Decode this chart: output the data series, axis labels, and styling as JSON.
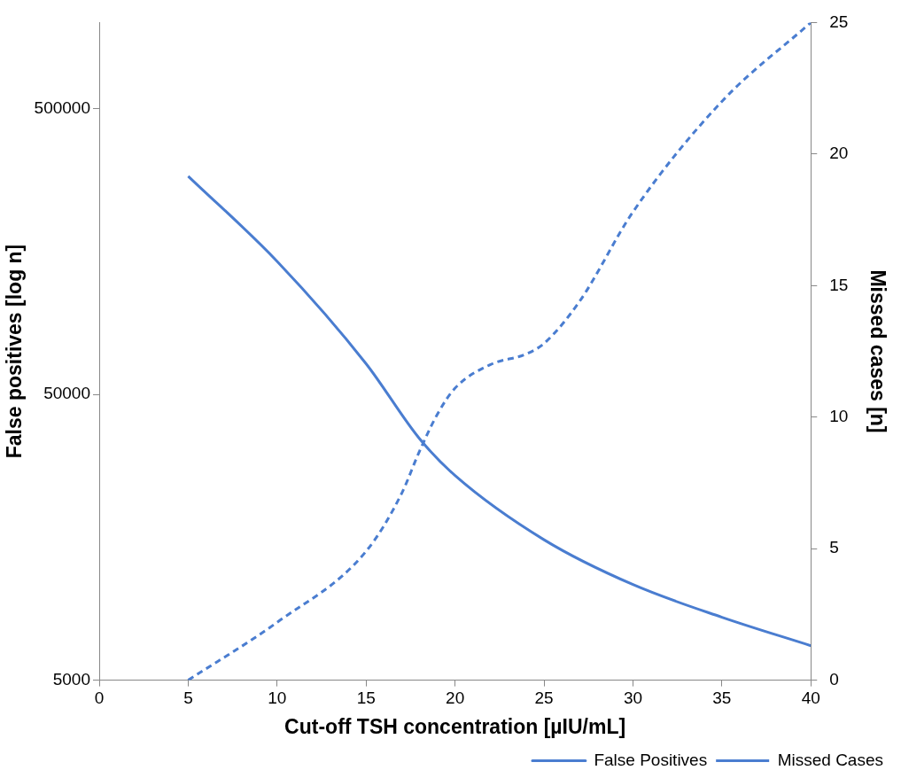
{
  "chart_data": {
    "type": "line",
    "xlabel": "Cut-off TSH concentration [µIU/mL]",
    "ylabel": "False positives [log n]",
    "y2label": "Missed cases [n]",
    "xlim": [
      0,
      40
    ],
    "xticks": [
      0,
      5,
      10,
      15,
      20,
      25,
      30,
      35,
      40
    ],
    "ylim": [
      5000,
      1000000
    ],
    "yticks": [
      5000,
      50000,
      500000
    ],
    "log": "y",
    "y2lim": [
      0,
      25
    ],
    "y2ticks": [
      0,
      5,
      10,
      15,
      20,
      25
    ],
    "grid": false,
    "legend": "bottom right",
    "marker": "none",
    "series": [
      {
        "name": "False Positives",
        "color": "#4a7dd0",
        "line_style": "solid",
        "x": [
          5,
          10,
          15,
          18,
          20,
          25,
          30,
          35,
          40
        ],
        "values": [
          290000,
          146000,
          64000,
          35000,
          26000,
          15500,
          10800,
          8300,
          6600
        ]
      },
      {
        "name": "Missed Cases",
        "color": "#4a7dd0",
        "line_style": "dashed",
        "axis": "y2",
        "x": [
          5,
          10,
          15,
          17,
          18,
          19,
          20,
          22,
          24,
          25,
          27,
          30,
          35,
          40
        ],
        "values": [
          0,
          2.2,
          4.9,
          7.1,
          8.7,
          10.1,
          11.1,
          12,
          12.4,
          12.8,
          14.4,
          17.8,
          22,
          25
        ]
      }
    ]
  }
}
